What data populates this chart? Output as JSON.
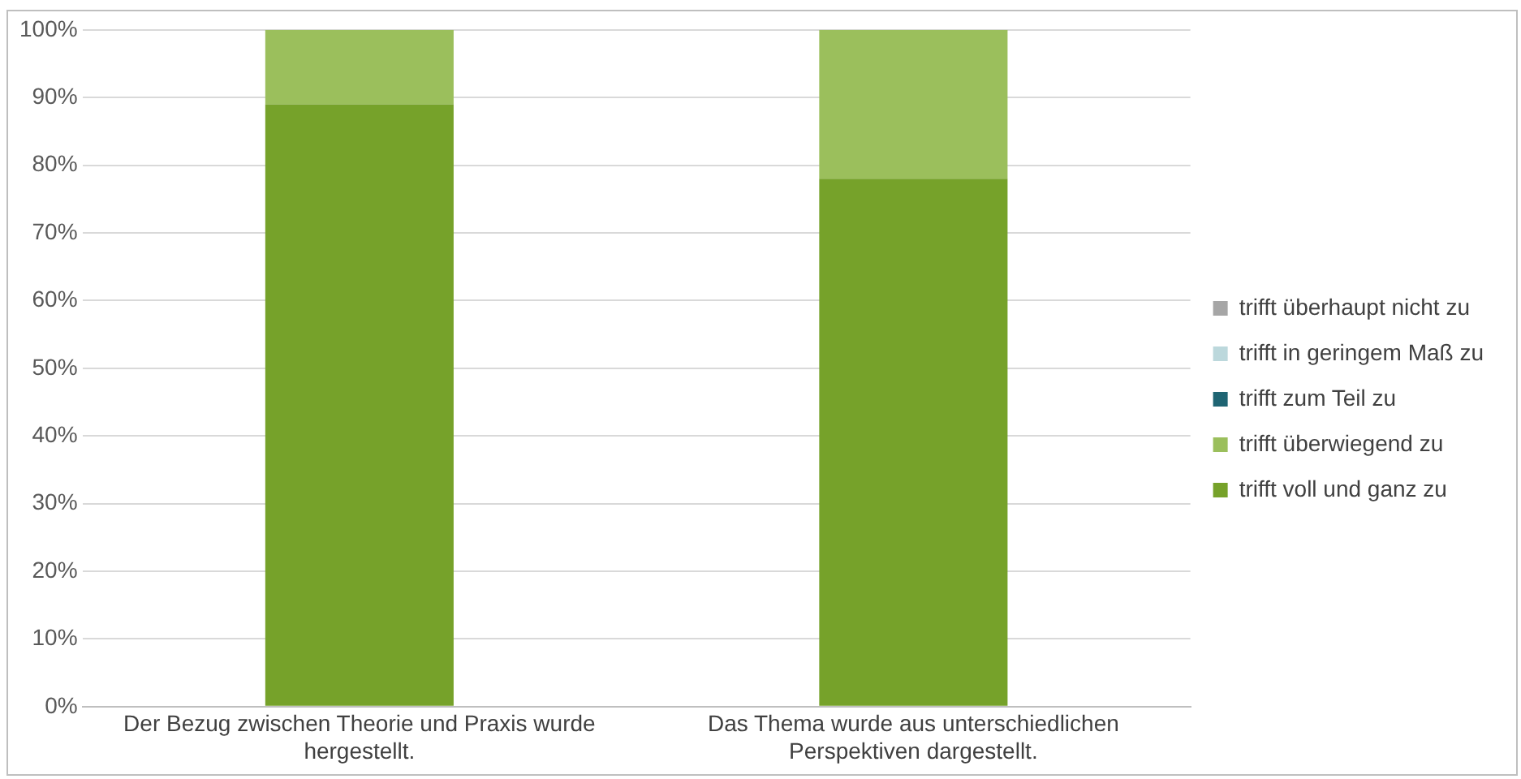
{
  "chart_data": {
    "type": "bar",
    "stacked": true,
    "categories": [
      "Der Bezug zwischen Theorie und Praxis wurde hergestellt.",
      "Das Thema wurde aus unterschiedlichen Perspektiven dargestellt."
    ],
    "series": [
      {
        "name": "trifft voll und ganz zu",
        "color": "#76a22a",
        "values": [
          89,
          78
        ]
      },
      {
        "name": "trifft überwiegend zu",
        "color": "#9bbf5c",
        "values": [
          11,
          22
        ]
      },
      {
        "name": "trifft zum Teil zu",
        "color": "#1f6573",
        "values": [
          0,
          0
        ]
      },
      {
        "name": "trifft in geringem Maß zu",
        "color": "#bcd8dc",
        "values": [
          0,
          0
        ]
      },
      {
        "name": "trifft überhaupt nicht zu",
        "color": "#a6a6a6",
        "values": [
          0,
          0
        ]
      }
    ],
    "ylim": [
      0,
      100
    ],
    "yticks": [
      {
        "value": 0,
        "label": "0%"
      },
      {
        "value": 10,
        "label": "10%"
      },
      {
        "value": 20,
        "label": "20%"
      },
      {
        "value": 30,
        "label": "30%"
      },
      {
        "value": 40,
        "label": "40%"
      },
      {
        "value": 50,
        "label": "50%"
      },
      {
        "value": 60,
        "label": "60%"
      },
      {
        "value": 70,
        "label": "70%"
      },
      {
        "value": 80,
        "label": "80%"
      },
      {
        "value": 90,
        "label": "90%"
      },
      {
        "value": 100,
        "label": "100%"
      }
    ],
    "grid": "y",
    "legend": "right"
  }
}
